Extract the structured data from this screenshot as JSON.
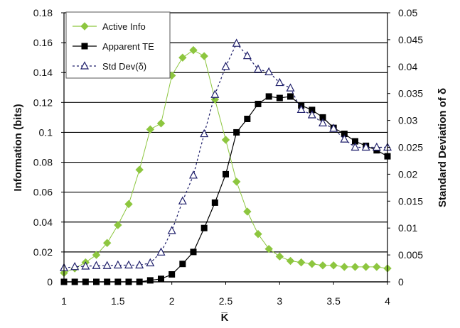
{
  "chart_data": {
    "type": "line",
    "title": "",
    "xlabel": "K̅",
    "ylabel": "Information (bits)",
    "y2label": "Standard Deviation of δ",
    "xlim": [
      1,
      4
    ],
    "ylim": [
      0,
      0.18
    ],
    "y2lim": [
      0,
      0.05
    ],
    "x_ticks": [
      "1",
      "1.5",
      "2",
      "2.5",
      "3",
      "3.5",
      "4"
    ],
    "y_ticks": [
      "0",
      "0.02",
      "0.04",
      "0.06",
      "0.08",
      "0.1",
      "0.12",
      "0.14",
      "0.16",
      "0.18"
    ],
    "y2_ticks": [
      "0",
      "0.005",
      "0.01",
      "0.015",
      "0.02",
      "0.025",
      "0.03",
      "0.035",
      "0.04",
      "0.045",
      "0.05"
    ],
    "grid": "horizontal",
    "legend_position": "top-left",
    "x": [
      1.0,
      1.1,
      1.2,
      1.3,
      1.4,
      1.5,
      1.6,
      1.7,
      1.8,
      1.9,
      2.0,
      2.1,
      2.2,
      2.3,
      2.4,
      2.5,
      2.6,
      2.7,
      2.8,
      2.9,
      3.0,
      3.1,
      3.2,
      3.3,
      3.4,
      3.5,
      3.6,
      3.7,
      3.8,
      3.9,
      4.0
    ],
    "series": [
      {
        "name": "Active Info",
        "axis": "left",
        "color": "#8dc63f",
        "marker": "diamond",
        "values": [
          0.006,
          0.009,
          0.013,
          0.018,
          0.026,
          0.038,
          0.052,
          0.075,
          0.102,
          0.106,
          0.138,
          0.15,
          0.155,
          0.151,
          0.122,
          0.095,
          0.067,
          0.047,
          0.032,
          0.022,
          0.017,
          0.014,
          0.013,
          0.012,
          0.011,
          0.011,
          0.01,
          0.01,
          0.01,
          0.01,
          0.009
        ]
      },
      {
        "name": "Apparent TE",
        "axis": "left",
        "color": "#000000",
        "marker": "square",
        "values": [
          0.0,
          0.0,
          0.0,
          0.0,
          0.0,
          0.0,
          0.0,
          0.0,
          0.001,
          0.002,
          0.005,
          0.012,
          0.02,
          0.036,
          0.053,
          0.072,
          0.1,
          0.109,
          0.119,
          0.124,
          0.123,
          0.124,
          0.118,
          0.115,
          0.11,
          0.103,
          0.099,
          0.094,
          0.091,
          0.088,
          0.084
        ]
      },
      {
        "name": "Std Dev(δ)",
        "axis": "right",
        "color": "#1f1f6b",
        "marker": "triangle",
        "values": [
          0.0026,
          0.0028,
          0.0029,
          0.003,
          0.003,
          0.0031,
          0.0031,
          0.0031,
          0.0035,
          0.0055,
          0.0095,
          0.015,
          0.0198,
          0.0275,
          0.0348,
          0.04,
          0.0443,
          0.042,
          0.0395,
          0.039,
          0.037,
          0.036,
          0.032,
          0.031,
          0.0295,
          0.0285,
          0.0265,
          0.025,
          0.025,
          0.025,
          0.025
        ]
      }
    ]
  }
}
